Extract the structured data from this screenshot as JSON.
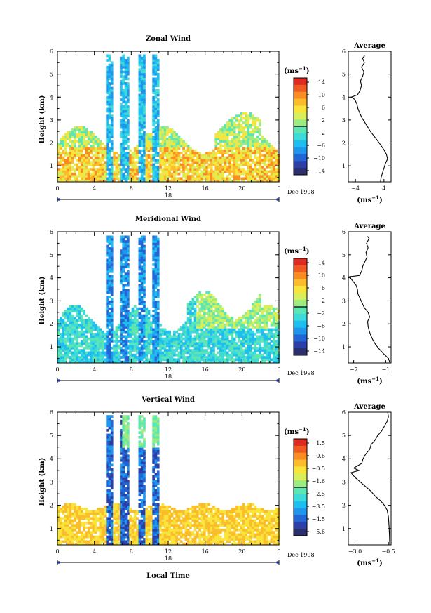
{
  "chart_data": [
    {
      "type": "heatmap",
      "title": "Zonal Wind",
      "xlabel": "",
      "ylabel": "Height (km)",
      "x_ticks": [
        "0",
        "4",
        "8",
        "12",
        "16",
        "20",
        "0"
      ],
      "y_ticks": [
        "1",
        "2",
        "3",
        "4",
        "5",
        "6"
      ],
      "ylim": [
        0.3,
        6
      ],
      "date_marker": "18",
      "date_label": "Dec 1998",
      "colorbar": {
        "unit_label": "(ms",
        "unit_sup": "−1",
        "unit_close": ")",
        "labels": [
          "14",
          "10",
          "6",
          "2",
          "−2",
          "−6",
          "−10",
          "−14"
        ],
        "range": [
          -16,
          16
        ]
      },
      "profile": {
        "title": "Average",
        "xlabel": "(ms",
        "xlabel_sup": "−1",
        "xlabel_close": ")",
        "x_ticks": [
          "−4",
          "4"
        ],
        "y_ticks": [
          "1",
          "2",
          "3",
          "4",
          "5",
          "6"
        ],
        "xlim": [
          -6,
          6
        ],
        "points": [
          [
            3.0,
            0.3
          ],
          [
            3.2,
            0.5
          ],
          [
            3.6,
            0.7
          ],
          [
            4.0,
            0.9
          ],
          [
            4.4,
            1.1
          ],
          [
            5.0,
            1.3
          ],
          [
            4.7,
            1.5
          ],
          [
            4.0,
            1.7
          ],
          [
            3.1,
            1.9
          ],
          [
            2.2,
            2.1
          ],
          [
            1.2,
            2.3
          ],
          [
            0.2,
            2.5
          ],
          [
            -0.6,
            2.7
          ],
          [
            -1.4,
            2.9
          ],
          [
            -2.2,
            3.1
          ],
          [
            -2.8,
            3.3
          ],
          [
            -3.3,
            3.5
          ],
          [
            -3.6,
            3.7
          ],
          [
            -4.2,
            3.9
          ],
          [
            -5.2,
            4.0
          ],
          [
            -3.4,
            4.1
          ],
          [
            -2.7,
            4.3
          ],
          [
            -2.3,
            4.5
          ],
          [
            -2.6,
            4.7
          ],
          [
            -2.0,
            4.9
          ],
          [
            -1.6,
            5.1
          ],
          [
            -2.3,
            5.3
          ],
          [
            -1.5,
            5.5
          ],
          [
            -2.0,
            5.7
          ],
          [
            -1.4,
            5.8
          ]
        ]
      }
    },
    {
      "type": "heatmap",
      "title": "Meridional Wind",
      "xlabel": "",
      "ylabel": "Height (km)",
      "x_ticks": [
        "0",
        "4",
        "8",
        "12",
        "16",
        "20",
        "0"
      ],
      "y_ticks": [
        "1",
        "2",
        "3",
        "4",
        "5",
        "6"
      ],
      "ylim": [
        0.3,
        6
      ],
      "date_marker": "18",
      "date_label": "Dec 1998",
      "colorbar": {
        "unit_label": "(ms",
        "unit_sup": "−1",
        "unit_close": ")",
        "labels": [
          "14",
          "10",
          "6",
          "2",
          "−2",
          "−6",
          "−10",
          "−14"
        ],
        "range": [
          -16,
          16
        ]
      },
      "profile": {
        "title": "Average",
        "xlabel": "(ms",
        "xlabel_sup": "−1",
        "xlabel_close": ")",
        "x_ticks": [
          "−7",
          "−1"
        ],
        "y_ticks": [
          "1",
          "2",
          "3",
          "4",
          "5",
          "6"
        ],
        "xlim": [
          -8,
          0
        ],
        "points": [
          [
            -0.2,
            0.3
          ],
          [
            -0.5,
            0.5
          ],
          [
            -1.4,
            0.7
          ],
          [
            -2.2,
            0.9
          ],
          [
            -2.9,
            1.1
          ],
          [
            -3.4,
            1.3
          ],
          [
            -3.8,
            1.5
          ],
          [
            -4.1,
            1.7
          ],
          [
            -4.3,
            1.9
          ],
          [
            -4.4,
            2.1
          ],
          [
            -4.0,
            2.3
          ],
          [
            -4.3,
            2.5
          ],
          [
            -5.0,
            2.7
          ],
          [
            -5.4,
            2.9
          ],
          [
            -5.8,
            3.1
          ],
          [
            -6.2,
            3.3
          ],
          [
            -6.3,
            3.5
          ],
          [
            -6.6,
            3.7
          ],
          [
            -7.3,
            3.9
          ],
          [
            -7.8,
            4.05
          ],
          [
            -5.9,
            4.1
          ],
          [
            -5.5,
            4.3
          ],
          [
            -5.3,
            4.5
          ],
          [
            -4.9,
            4.7
          ],
          [
            -4.5,
            4.9
          ],
          [
            -4.7,
            5.1
          ],
          [
            -4.3,
            5.3
          ],
          [
            -4.6,
            5.5
          ],
          [
            -4.1,
            5.7
          ],
          [
            -4.4,
            5.8
          ]
        ]
      }
    },
    {
      "type": "heatmap",
      "title": "Vertical Wind",
      "xlabel": "Local Time",
      "ylabel": "Height (km)",
      "x_ticks": [
        "0",
        "4",
        "8",
        "12",
        "16",
        "20",
        "0"
      ],
      "y_ticks": [
        "1",
        "2",
        "3",
        "4",
        "5",
        "6"
      ],
      "ylim": [
        0.3,
        6
      ],
      "date_marker": "18",
      "date_label": "Dec 1998",
      "colorbar": {
        "unit_label": "(ms",
        "unit_sup": "−1",
        "unit_close": ")",
        "labels": [
          "1.5",
          "0.6",
          "−0.5",
          "−1.6",
          "−2.5",
          "−3.5",
          "−4.5",
          "−5.6"
        ],
        "range": [
          -6,
          2
        ]
      },
      "profile": {
        "title": "Average",
        "xlabel": "(ms",
        "xlabel_sup": "−1",
        "xlabel_close": ")",
        "x_ticks": [
          "−3.0",
          "−0.5"
        ],
        "y_ticks": [
          "1",
          "2",
          "3",
          "4",
          "5",
          "6"
        ],
        "xlim": [
          -3.5,
          -0.3
        ],
        "points": [
          [
            -0.4,
            0.3
          ],
          [
            -0.42,
            0.7
          ],
          [
            -0.45,
            1.1
          ],
          [
            -0.5,
            1.5
          ],
          [
            -0.6,
            1.8
          ],
          [
            -0.8,
            2.0
          ],
          [
            -1.1,
            2.2
          ],
          [
            -1.5,
            2.4
          ],
          [
            -1.8,
            2.6
          ],
          [
            -2.2,
            2.8
          ],
          [
            -2.6,
            3.0
          ],
          [
            -3.0,
            3.2
          ],
          [
            -3.3,
            3.4
          ],
          [
            -2.7,
            3.5
          ],
          [
            -3.1,
            3.6
          ],
          [
            -2.5,
            3.8
          ],
          [
            -2.4,
            4.0
          ],
          [
            -2.2,
            4.2
          ],
          [
            -1.9,
            4.4
          ],
          [
            -1.8,
            4.6
          ],
          [
            -1.5,
            4.8
          ],
          [
            -1.3,
            5.0
          ],
          [
            -1.0,
            5.2
          ],
          [
            -0.8,
            5.4
          ],
          [
            -0.6,
            5.6
          ],
          [
            -0.5,
            5.8
          ],
          [
            -0.55,
            6.0
          ]
        ]
      }
    }
  ]
}
